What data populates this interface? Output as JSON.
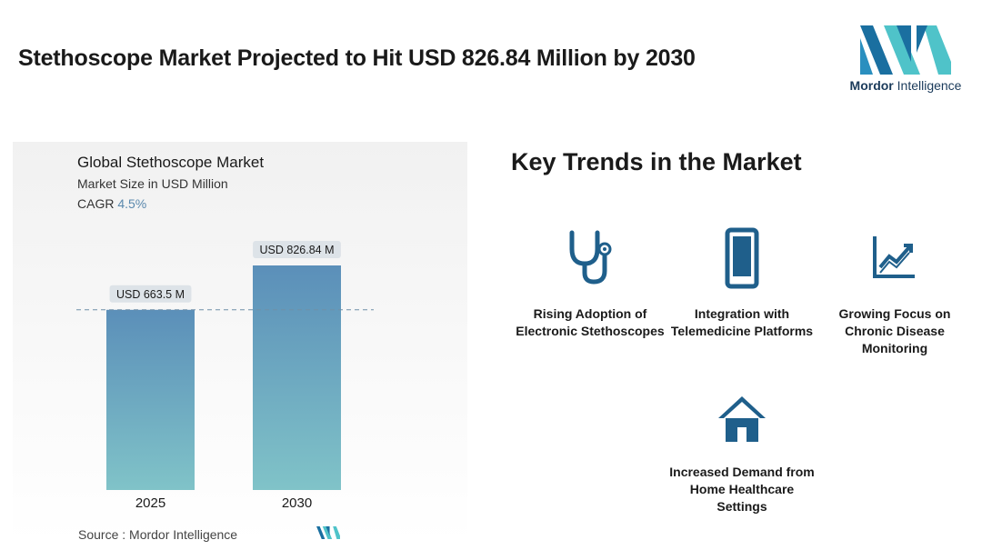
{
  "header": {
    "title": "Stethoscope Market Projected to Hit USD 826.84 Million by 2030",
    "logo_text_bold": "Mordor",
    "logo_text_regular": "Intelligence"
  },
  "chart": {
    "title": "Global Stethoscope Market",
    "subtitle": "Market Size in USD Million",
    "cagr_label": "CAGR",
    "cagr_value": "4.5%"
  },
  "chart_data": {
    "type": "bar",
    "categories": [
      "2025",
      "2030"
    ],
    "values": [
      663.5,
      826.84
    ],
    "data_labels": [
      "USD 663.5 M",
      "USD 826.84 M"
    ],
    "title": "Global Stethoscope Market",
    "subtitle": "Market Size in USD Million",
    "xlabel": "",
    "ylabel": "",
    "ylim": [
      0,
      826.84
    ],
    "grid": false,
    "reference_line": "dashed line at 2025 value",
    "bar_gradient": [
      "#5b8fb9",
      "#80c3c8"
    ]
  },
  "source": {
    "text": "Source :  Mordor Intelligence"
  },
  "trends": {
    "title": "Key Trends in the Market",
    "items": [
      {
        "label": "Rising Adoption of Electronic Stethoscopes",
        "icon": "stethoscope-icon"
      },
      {
        "label": "Integration with Telemedicine Platforms",
        "icon": "smartphone-icon"
      },
      {
        "label": "Growing Focus on Chronic Disease Monitoring",
        "icon": "trend-chart-icon"
      },
      {
        "label": "Increased Demand from Home Healthcare Settings",
        "icon": "home-icon"
      }
    ]
  },
  "colors": {
    "icon": "#1f5f8b",
    "accent": "#5a88ad",
    "logo_dark": "#1a6fa0",
    "logo_light": "#4fc3c9"
  }
}
